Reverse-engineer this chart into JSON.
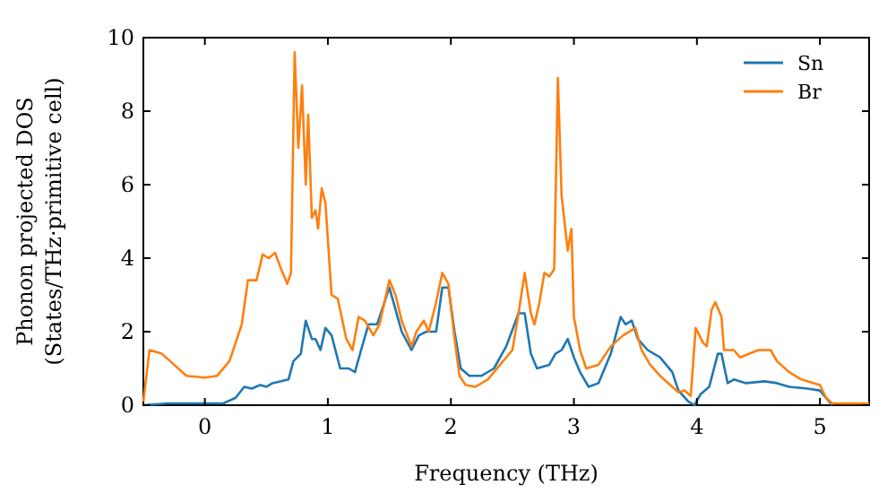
{
  "chart_data": {
    "type": "line",
    "xlabel": "Frequency (THz)",
    "ylabel": "Phonon projected DOS\n(States/THz·primitive cell)",
    "xlim": [
      -0.5,
      5.4
    ],
    "xticks": [
      0,
      1,
      2,
      3,
      4,
      5
    ],
    "ylim": [
      0,
      10
    ],
    "yticks": [
      0,
      2,
      4,
      6,
      8,
      10
    ],
    "legend": "top right",
    "grid": false,
    "line_style": "solid",
    "marker": "none",
    "series": [
      {
        "name": "Sn",
        "color": "#1f77b4",
        "x": [
          -0.5,
          -0.3,
          0,
          0.15,
          0.25,
          0.32,
          0.38,
          0.45,
          0.5,
          0.55,
          0.62,
          0.68,
          0.72,
          0.78,
          0.82,
          0.87,
          0.9,
          0.94,
          0.98,
          1.03,
          1.1,
          1.17,
          1.22,
          1.27,
          1.33,
          1.4,
          1.5,
          1.55,
          1.6,
          1.68,
          1.74,
          1.8,
          1.88,
          1.93,
          1.98,
          2.03,
          2.08,
          2.15,
          2.25,
          2.35,
          2.45,
          2.55,
          2.6,
          2.65,
          2.7,
          2.8,
          2.85,
          2.9,
          2.95,
          3.0,
          3.05,
          3.12,
          3.2,
          3.3,
          3.38,
          3.42,
          3.47,
          3.52,
          3.6,
          3.7,
          3.8,
          3.85,
          3.93,
          3.98,
          4.03,
          4.1,
          4.17,
          4.2,
          4.25,
          4.3,
          4.4,
          4.55,
          4.65,
          4.75,
          4.9,
          5.0,
          5.05,
          5.1
        ],
        "values": [
          0,
          0.05,
          0.05,
          0.05,
          0.2,
          0.5,
          0.45,
          0.55,
          0.5,
          0.6,
          0.65,
          0.7,
          1.2,
          1.4,
          2.3,
          1.8,
          1.8,
          1.5,
          2.1,
          1.9,
          1.0,
          1.0,
          0.9,
          1.5,
          2.2,
          2.2,
          3.2,
          2.6,
          2.0,
          1.5,
          1.9,
          2.0,
          2.0,
          3.2,
          3.2,
          2.0,
          1.0,
          0.8,
          0.8,
          1.0,
          1.6,
          2.5,
          2.5,
          1.4,
          1.0,
          1.1,
          1.4,
          1.5,
          1.8,
          1.3,
          0.9,
          0.5,
          0.6,
          1.4,
          2.4,
          2.2,
          2.3,
          1.8,
          1.5,
          1.3,
          0.9,
          0.4,
          0.1,
          0,
          0.3,
          0.5,
          1.4,
          1.4,
          0.6,
          0.7,
          0.6,
          0.65,
          0.6,
          0.5,
          0.45,
          0.4,
          0.2,
          0
        ]
      },
      {
        "name": "Br",
        "color": "#ff7f0e",
        "x": [
          -0.5,
          -0.45,
          -0.35,
          -0.25,
          -0.15,
          0,
          0.1,
          0.2,
          0.3,
          0.35,
          0.42,
          0.47,
          0.52,
          0.57,
          0.62,
          0.67,
          0.7,
          0.73,
          0.76,
          0.79,
          0.82,
          0.84,
          0.87,
          0.9,
          0.92,
          0.95,
          0.98,
          1.03,
          1.08,
          1.15,
          1.2,
          1.25,
          1.3,
          1.37,
          1.42,
          1.5,
          1.55,
          1.6,
          1.68,
          1.72,
          1.78,
          1.82,
          1.88,
          1.93,
          1.98,
          2.03,
          2.07,
          2.12,
          2.2,
          2.3,
          2.4,
          2.5,
          2.55,
          2.6,
          2.65,
          2.68,
          2.72,
          2.76,
          2.8,
          2.84,
          2.87,
          2.9,
          2.95,
          2.98,
          3.0,
          3.05,
          3.1,
          3.2,
          3.3,
          3.4,
          3.5,
          3.55,
          3.62,
          3.7,
          3.8,
          3.85,
          3.9,
          3.95,
          3.99,
          4.05,
          4.08,
          4.12,
          4.15,
          4.2,
          4.22,
          4.3,
          4.35,
          4.5,
          4.6,
          4.65,
          4.75,
          4.85,
          4.95,
          5.0,
          5.05,
          5.1,
          5.4
        ],
        "values": [
          0.1,
          1.5,
          1.4,
          1.1,
          0.8,
          0.75,
          0.8,
          1.2,
          2.2,
          3.4,
          3.4,
          4.1,
          4.0,
          4.15,
          3.7,
          3.3,
          3.6,
          9.6,
          7.0,
          8.7,
          6.0,
          7.9,
          5.1,
          5.3,
          4.8,
          5.9,
          5.5,
          3.0,
          2.9,
          1.8,
          1.5,
          2.4,
          2.3,
          1.9,
          2.2,
          3.4,
          3.0,
          2.3,
          1.6,
          2.0,
          2.3,
          2.0,
          2.8,
          3.6,
          3.3,
          1.8,
          0.8,
          0.55,
          0.5,
          0.7,
          1.1,
          1.5,
          2.5,
          3.6,
          2.5,
          2.2,
          2.8,
          3.6,
          3.5,
          3.7,
          8.9,
          5.7,
          4.2,
          4.8,
          2.4,
          1.5,
          1.0,
          1.1,
          1.6,
          1.9,
          2.1,
          1.5,
          1.1,
          0.8,
          0.5,
          0.35,
          0.4,
          0.25,
          2.1,
          1.7,
          1.6,
          2.6,
          2.8,
          2.4,
          1.5,
          1.5,
          1.3,
          1.5,
          1.5,
          1.2,
          0.9,
          0.7,
          0.6,
          0.55,
          0.2,
          0.05,
          0.05
        ]
      }
    ]
  }
}
